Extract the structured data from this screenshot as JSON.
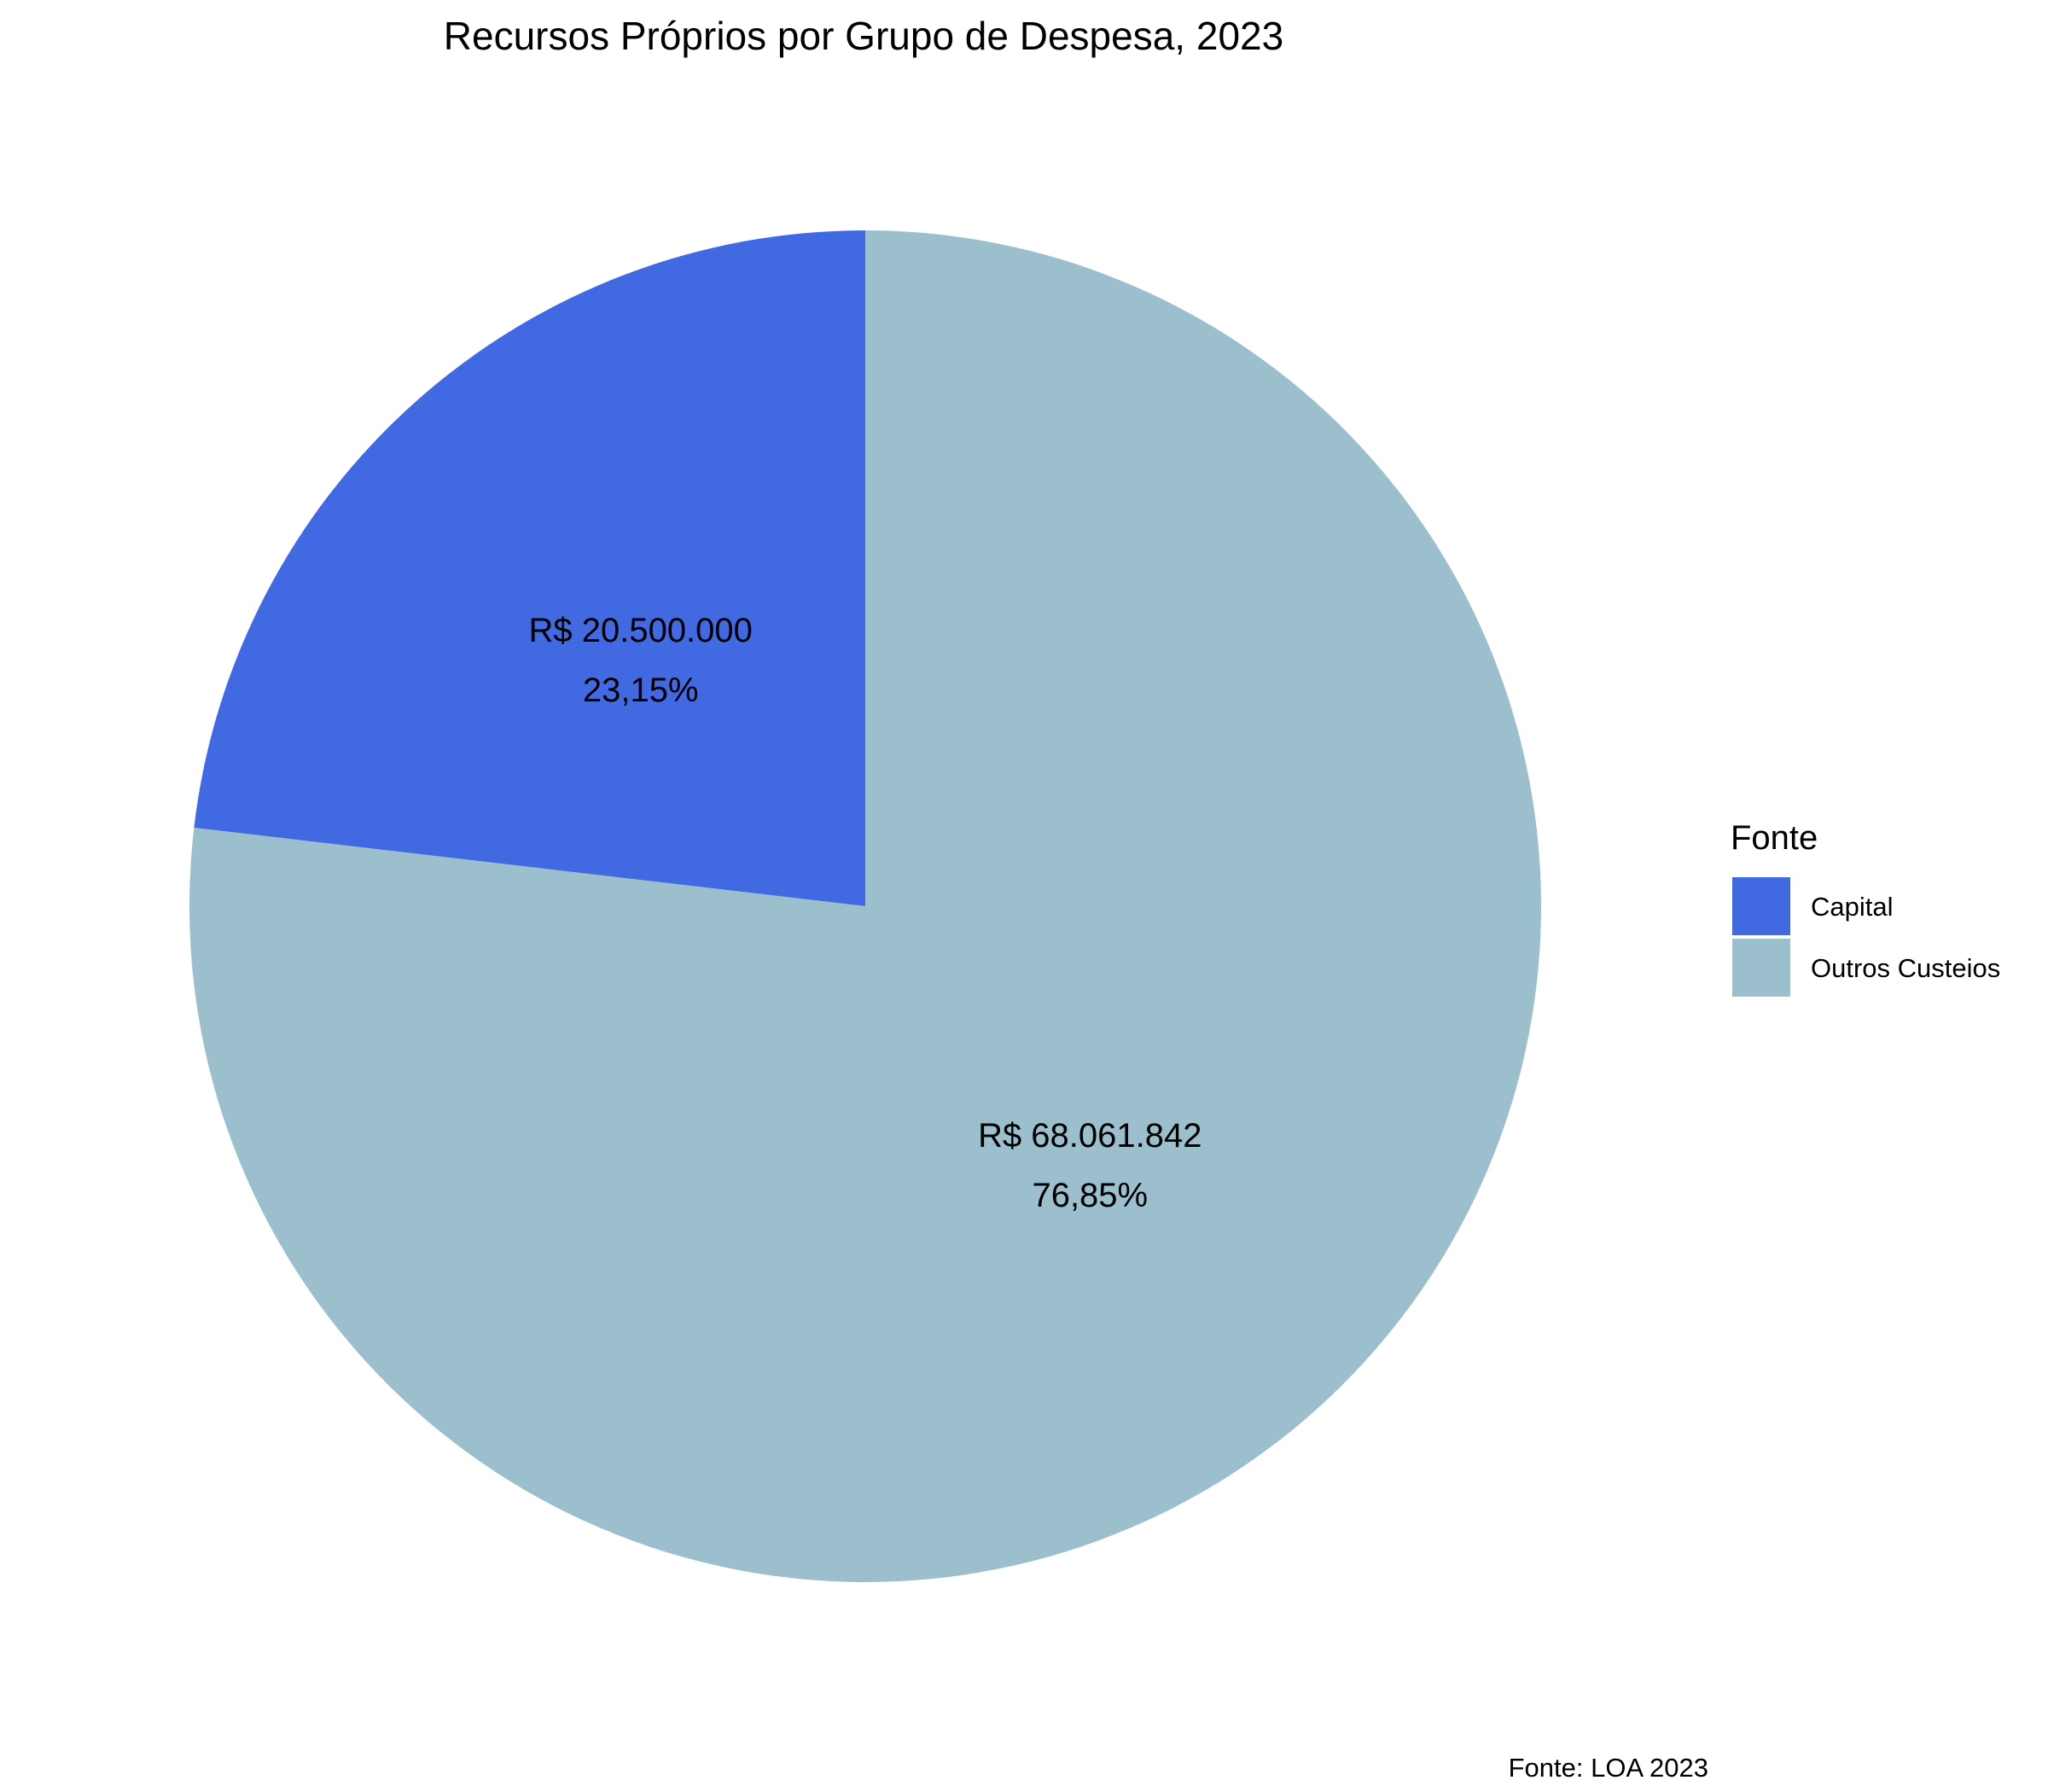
{
  "chart_data": {
    "type": "pie",
    "title": "Recursos Próprios por Grupo de Despesa, 2023",
    "legend_title": "Fonte",
    "legend_position": "right",
    "caption": "Fonte: LOA 2023",
    "slices": [
      {
        "name": "Capital",
        "value": 20500000,
        "value_label": "R$ 20.500.000",
        "percent_label": "23,15%",
        "color": "#4169E1"
      },
      {
        "name": "Outros Custeios",
        "value": 68061842,
        "value_label": "R$ 68.061.842",
        "percent_label": "76,85%",
        "color": "#9BBFCD"
      }
    ]
  }
}
